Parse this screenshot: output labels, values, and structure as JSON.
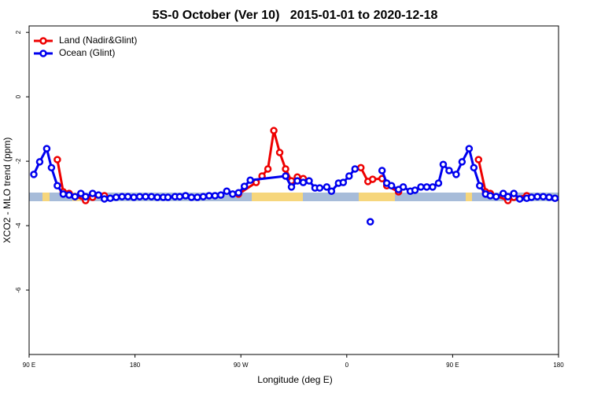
{
  "chart_data": {
    "type": "line",
    "title": "5S-0 October (Ver 10)   2015-01-01 to 2020-12-18",
    "x_label": "Longitude (deg E)",
    "y_label": "XCO2 - MLO trend (ppm)",
    "xlim": [
      90,
      540
    ],
    "xticks": [
      {
        "value": 90,
        "label": "90 E"
      },
      180,
      {
        "value": 270,
        "label": "90 W"
      },
      {
        "value": 360,
        "label": "0"
      },
      {
        "value": 450,
        "label": "90 E"
      },
      {
        "value": 540,
        "label": "180"
      }
    ],
    "ylim": [
      -8,
      2.2
    ],
    "yticks": [
      2,
      0,
      -2,
      -4,
      -6
    ],
    "legend": "top-left",
    "series": [
      {
        "name": "Land (Nadir&Glint)",
        "color": "#ee0000",
        "x": [
          114,
          119,
          124,
          138,
          144,
          154,
          200,
          268,
          283,
          288,
          293,
          298,
          303,
          308,
          313,
          318,
          323,
          350,
          372,
          378,
          382,
          390,
          394,
          404,
          440,
          472,
          478,
          482,
          497,
          502,
          513
        ],
        "values": [
          -1.95,
          -2.95,
          -3.0,
          -3.22,
          -3.12,
          -3.07,
          null,
          -3.02,
          -2.66,
          -2.46,
          -2.24,
          -1.05,
          -1.73,
          -2.24,
          -2.61,
          -2.49,
          -2.54,
          null,
          -2.2,
          -2.63,
          -2.56,
          -2.54,
          -2.76,
          -2.95,
          null,
          -1.95,
          -2.95,
          -3.0,
          -3.22,
          -3.12,
          -3.07
        ]
      },
      {
        "name": "Ocean (Glint)",
        "color": "#0000ee",
        "x": [
          94,
          99,
          105,
          109,
          114,
          119,
          124,
          129,
          134,
          138,
          144,
          149,
          154,
          159,
          164,
          169,
          174,
          179,
          184,
          189,
          194,
          199,
          204,
          208,
          214,
          218,
          223,
          228,
          233,
          238,
          243,
          248,
          253,
          258,
          263,
          268,
          273,
          278,
          308,
          313,
          318,
          323,
          328,
          333,
          337,
          343,
          347,
          353,
          357,
          362,
          367,
          375,
          380,
          385,
          390,
          394,
          398,
          404,
          408,
          414,
          418,
          423,
          428,
          433,
          438,
          442,
          447,
          453,
          458,
          464,
          468,
          473,
          478,
          482,
          487,
          493,
          497,
          502,
          507,
          513,
          517,
          522,
          527,
          532,
          537
        ],
        "values": [
          -2.41,
          -2.02,
          -1.61,
          -2.2,
          -2.76,
          -3.02,
          -3.05,
          -3.1,
          -3.0,
          -3.1,
          -3.0,
          -3.05,
          -3.17,
          -3.15,
          -3.12,
          -3.1,
          -3.1,
          -3.12,
          -3.1,
          -3.1,
          -3.1,
          -3.12,
          -3.12,
          -3.12,
          -3.1,
          -3.1,
          -3.07,
          -3.12,
          -3.12,
          -3.1,
          -3.07,
          -3.07,
          -3.05,
          -2.93,
          -3.02,
          -2.98,
          -2.78,
          -2.59,
          -2.46,
          -2.8,
          -2.61,
          -2.66,
          -2.61,
          -2.83,
          -2.83,
          -2.8,
          -2.93,
          -2.68,
          -2.66,
          -2.46,
          -2.24,
          null,
          -3.88,
          null,
          -2.29,
          -2.68,
          -2.76,
          -2.88,
          -2.8,
          -2.93,
          -2.9,
          -2.8,
          -2.8,
          -2.8,
          -2.68,
          -2.1,
          -2.29,
          -2.41,
          -2.02,
          -1.61,
          -2.2,
          -2.76,
          -3.02,
          -3.07,
          -3.1,
          -3.0,
          -3.1,
          -3.0,
          -3.17,
          -3.15,
          -3.12,
          -3.1,
          -3.1,
          -3.12,
          -3.15
        ]
      }
    ]
  }
}
